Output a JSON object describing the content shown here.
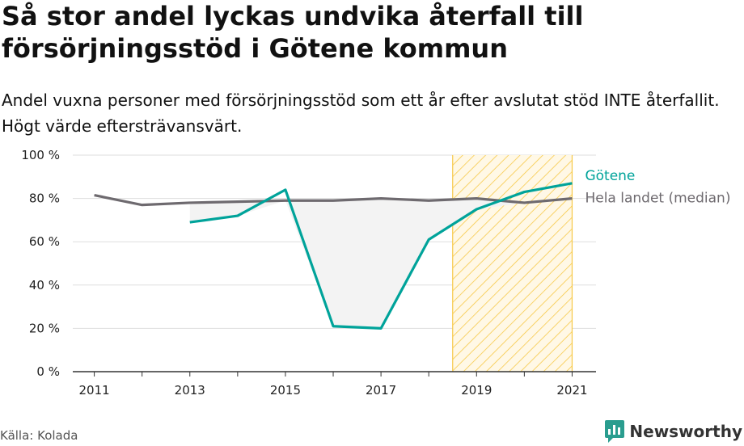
{
  "title": "Så stor andel lyckas undvika återfall till försörjningsstöd i Götene kommun",
  "subtitle": "Andel vuxna personer med försörjningsstöd som ett år efter avslutat stöd INTE återfallit. Högt värde eftersträvansvärt.",
  "source": "Källa: Kolada",
  "brand": "Newsworthy",
  "chart_data": {
    "type": "line",
    "x": [
      2011,
      2012,
      2013,
      2014,
      2015,
      2016,
      2017,
      2018,
      2019,
      2020,
      2021
    ],
    "ylim": [
      0,
      100
    ],
    "yticks": [
      0,
      20,
      40,
      60,
      80,
      100
    ],
    "ytick_labels": [
      "0 %",
      "20 %",
      "40 %",
      "60 %",
      "80 %",
      "100 %"
    ],
    "xticks": [
      2011,
      2013,
      2015,
      2017,
      2019,
      2021
    ],
    "xtick_labels": [
      "2011",
      "2013",
      "2015",
      "2017",
      "2019",
      "2021"
    ],
    "grid": true,
    "highlight_range": [
      2018.5,
      2021
    ],
    "series": [
      {
        "name": "Götene",
        "color": "#00a39a",
        "values": [
          null,
          null,
          69,
          72,
          84,
          21,
          20,
          61,
          75,
          83,
          87
        ]
      },
      {
        "name": "Hela landet (median)",
        "color": "#6e6a6f",
        "values": [
          81.5,
          77,
          78,
          78.5,
          79,
          79,
          80,
          79,
          80,
          78,
          80
        ]
      }
    ],
    "colors": {
      "highlight": "#f7c948",
      "fill": "#eeeeee",
      "grid": "#dddddd",
      "axis": "#333333"
    }
  }
}
